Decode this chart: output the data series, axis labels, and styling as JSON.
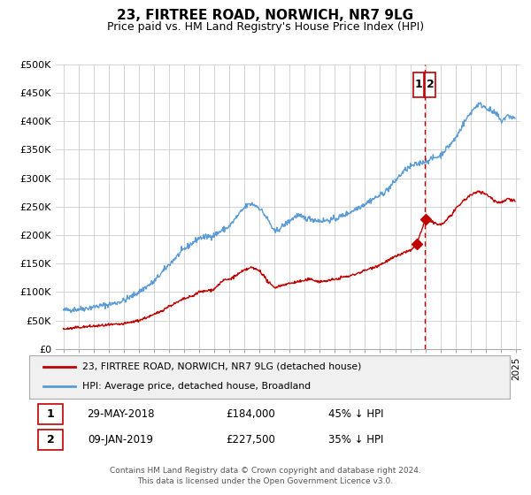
{
  "title": "23, FIRTREE ROAD, NORWICH, NR7 9LG",
  "subtitle": "Price paid vs. HM Land Registry's House Price Index (HPI)",
  "legend_line1": "23, FIRTREE ROAD, NORWICH, NR7 9LG (detached house)",
  "legend_line2": "HPI: Average price, detached house, Broadland",
  "footer_line1": "Contains HM Land Registry data © Crown copyright and database right 2024.",
  "footer_line2": "This data is licensed under the Open Government Licence v3.0.",
  "annotation1_date": "29-MAY-2018",
  "annotation1_price": "£184,000",
  "annotation1_pct": "45% ↓ HPI",
  "annotation2_date": "09-JAN-2019",
  "annotation2_price": "£227,500",
  "annotation2_pct": "35% ↓ HPI",
  "vline_x": 2018.95,
  "point1_x": 2018.41,
  "point1_y": 184000,
  "point2_x": 2019.02,
  "point2_y": 227500,
  "ylim": [
    0,
    500000
  ],
  "xlim_left": 1994.5,
  "xlim_right": 2025.3,
  "hpi_color": "#5b9bd5",
  "price_color": "#c00000",
  "vline_color": "#c00000",
  "bg_color": "#ffffff",
  "grid_color": "#cccccc",
  "ytick_labels": [
    "£0",
    "£50K",
    "£100K",
    "£150K",
    "£200K",
    "£250K",
    "£300K",
    "£350K",
    "£400K",
    "£450K",
    "£500K"
  ],
  "ytick_values": [
    0,
    50000,
    100000,
    150000,
    200000,
    250000,
    300000,
    350000,
    400000,
    450000,
    500000
  ],
  "hpi_anchors_x": [
    1995.0,
    1995.5,
    1996.0,
    1996.5,
    1997.0,
    1997.5,
    1998.0,
    1998.5,
    1999.0,
    1999.5,
    2000.0,
    2000.5,
    2001.0,
    2001.5,
    2002.0,
    2002.5,
    2003.0,
    2003.5,
    2004.0,
    2004.5,
    2005.0,
    2005.5,
    2006.0,
    2006.5,
    2007.0,
    2007.25,
    2007.5,
    2007.75,
    2008.0,
    2008.25,
    2008.5,
    2008.75,
    2009.0,
    2009.25,
    2009.5,
    2009.75,
    2010.0,
    2010.25,
    2010.5,
    2010.75,
    2011.0,
    2011.5,
    2012.0,
    2012.5,
    2013.0,
    2013.5,
    2014.0,
    2014.5,
    2015.0,
    2015.5,
    2016.0,
    2016.5,
    2017.0,
    2017.25,
    2017.5,
    2017.75,
    2018.0,
    2018.25,
    2018.5,
    2018.75,
    2019.0,
    2019.25,
    2019.5,
    2019.75,
    2020.0,
    2020.25,
    2020.5,
    2020.75,
    2021.0,
    2021.25,
    2021.5,
    2021.75,
    2022.0,
    2022.25,
    2022.5,
    2022.75,
    2023.0,
    2023.25,
    2023.5,
    2023.75,
    2024.0,
    2024.25,
    2024.5,
    2024.75,
    2024.95
  ],
  "hpi_anchors_y": [
    68000,
    69000,
    70000,
    71500,
    74000,
    76000,
    78000,
    81000,
    85000,
    92000,
    100000,
    109000,
    118000,
    133000,
    148000,
    162000,
    175000,
    185000,
    195000,
    197000,
    200000,
    208000,
    215000,
    232000,
    248000,
    253000,
    255000,
    252000,
    248000,
    239000,
    230000,
    218000,
    205000,
    210000,
    215000,
    220000,
    225000,
    230000,
    235000,
    232000,
    230000,
    228000,
    225000,
    226000,
    228000,
    234000,
    240000,
    248000,
    255000,
    263000,
    270000,
    280000,
    295000,
    303000,
    310000,
    316000,
    320000,
    323000,
    325000,
    328000,
    330000,
    332000,
    335000,
    337000,
    340000,
    348000,
    355000,
    362000,
    370000,
    382000,
    395000,
    405000,
    415000,
    423000,
    430000,
    428000,
    425000,
    420000,
    415000,
    412000,
    400000,
    405000,
    410000,
    407000,
    405000
  ],
  "price_anchors_x": [
    1995.0,
    1995.5,
    1996.0,
    1996.5,
    1997.0,
    1997.5,
    1998.0,
    1998.5,
    1999.0,
    1999.5,
    2000.0,
    2000.5,
    2001.0,
    2001.5,
    2002.0,
    2002.5,
    2003.0,
    2003.5,
    2004.0,
    2004.5,
    2005.0,
    2005.25,
    2005.5,
    2005.75,
    2006.0,
    2006.5,
    2007.0,
    2007.25,
    2007.5,
    2007.75,
    2008.0,
    2008.25,
    2008.5,
    2008.75,
    2009.0,
    2009.25,
    2009.5,
    2009.75,
    2010.0,
    2010.5,
    2011.0,
    2011.25,
    2011.5,
    2011.75,
    2012.0,
    2012.5,
    2013.0,
    2013.5,
    2014.0,
    2014.5,
    2015.0,
    2015.5,
    2016.0,
    2016.5,
    2017.0,
    2017.25,
    2017.5,
    2017.75,
    2018.0,
    2018.25,
    2018.41,
    2019.02,
    2019.25,
    2019.5,
    2019.75,
    2020.0,
    2020.25,
    2020.5,
    2020.75,
    2021.0,
    2021.25,
    2021.5,
    2021.75,
    2022.0,
    2022.25,
    2022.5,
    2022.75,
    2023.0,
    2023.25,
    2023.5,
    2023.75,
    2024.0,
    2024.25,
    2024.5,
    2024.75,
    2024.95
  ],
  "price_anchors_y": [
    35000,
    36000,
    38000,
    39000,
    40000,
    41000,
    42000,
    43000,
    44000,
    47000,
    50000,
    55000,
    60000,
    67000,
    75000,
    81000,
    88000,
    92000,
    100000,
    102000,
    105000,
    112000,
    118000,
    122000,
    122000,
    130000,
    138000,
    141000,
    143000,
    140000,
    138000,
    130000,
    120000,
    113000,
    108000,
    110000,
    112000,
    114000,
    115000,
    118000,
    120000,
    122000,
    122000,
    120000,
    118000,
    120000,
    122000,
    126000,
    128000,
    133000,
    138000,
    143000,
    148000,
    155000,
    162000,
    165000,
    168000,
    171000,
    172000,
    178000,
    184000,
    227500,
    224000,
    222000,
    220000,
    218000,
    222000,
    230000,
    236000,
    245000,
    252000,
    260000,
    265000,
    270000,
    273000,
    278000,
    275000,
    272000,
    268000,
    262000,
    258000,
    258000,
    260000,
    265000,
    262000,
    260000
  ]
}
